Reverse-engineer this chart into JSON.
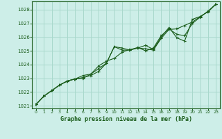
{
  "title": "Graphe pression niveau de la mer (hPa)",
  "background_color": "#cdeee8",
  "grid_color": "#a8d8cc",
  "line_color": "#1a5c1a",
  "xlim": [
    -0.5,
    23.5
  ],
  "ylim": [
    1020.8,
    1028.6
  ],
  "yticks": [
    1021,
    1022,
    1023,
    1024,
    1025,
    1026,
    1027,
    1028
  ],
  "xticks": [
    0,
    1,
    2,
    3,
    4,
    5,
    6,
    7,
    8,
    9,
    10,
    11,
    12,
    13,
    14,
    15,
    16,
    17,
    18,
    19,
    20,
    21,
    22,
    23
  ],
  "series1": [
    1021.1,
    1021.7,
    1022.1,
    1022.5,
    1022.8,
    1022.95,
    1023.05,
    1023.2,
    1023.5,
    1024.1,
    1025.3,
    1025.2,
    1025.05,
    1025.2,
    1025.15,
    1025.05,
    1025.9,
    1026.55,
    1026.6,
    1026.85,
    1027.1,
    1027.5,
    1027.85,
    1028.4
  ],
  "series2": [
    1021.1,
    1021.7,
    1022.1,
    1022.5,
    1022.8,
    1022.95,
    1023.0,
    1023.3,
    1023.9,
    1024.25,
    1024.45,
    1024.9,
    1025.1,
    1025.2,
    1025.4,
    1025.1,
    1026.0,
    1026.7,
    1025.95,
    1025.7,
    1027.3,
    1027.5,
    1027.85,
    1028.4
  ],
  "series3": [
    1021.1,
    1021.7,
    1022.1,
    1022.5,
    1022.8,
    1022.95,
    1023.2,
    1023.3,
    1023.7,
    1024.1,
    1025.3,
    1025.05,
    1025.05,
    1025.25,
    1025.0,
    1025.2,
    1026.1,
    1026.6,
    1026.2,
    1026.1,
    1027.0,
    1027.45,
    1027.9,
    1028.4
  ]
}
